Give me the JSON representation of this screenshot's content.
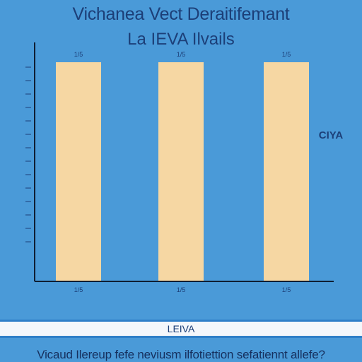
{
  "chart_data": {
    "type": "bar",
    "title": "Vichanea Vect Deraitifemant",
    "subtitle": "La IEVA Ilvails",
    "categories": [
      "",
      "",
      ""
    ],
    "values": [
      310,
      310,
      310
    ],
    "value_labels": [
      "1/5",
      "1/5",
      "1/5"
    ],
    "ylim": [
      0,
      310
    ],
    "legend": "right",
    "bar_color": "#f6d7a3"
  },
  "side_note": {
    "title": "CIYA",
    "lines": [
      "",
      ""
    ]
  },
  "band_label": "LEIVA",
  "footer_text": "Vicaud Ilereup fefe neviusm ilfotiettion sefatiennt allefe?"
}
